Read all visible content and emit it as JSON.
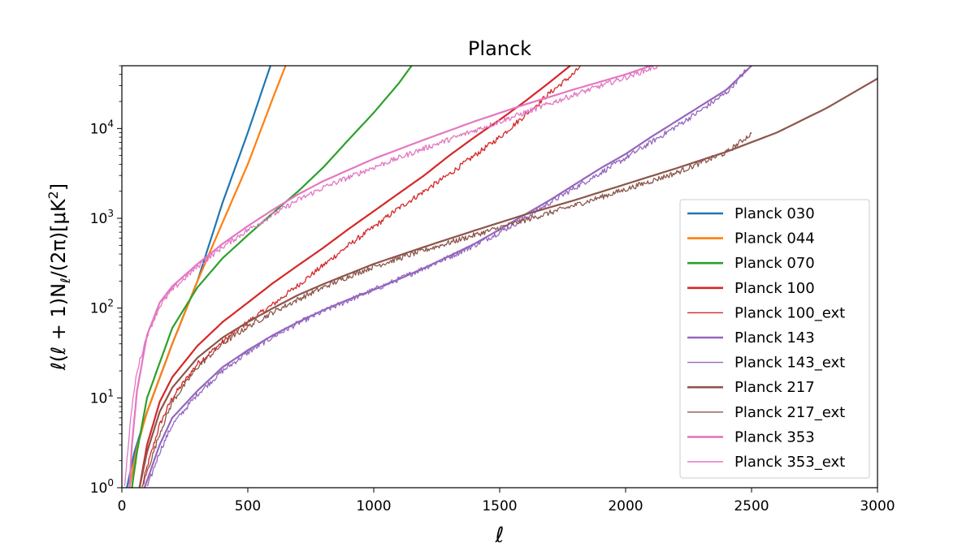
{
  "chart_data": {
    "type": "line",
    "title": "Planck",
    "xlabel": "ℓ",
    "ylabel": "ℓ(ℓ + 1)N",
    "ylabel_sub": "ℓ",
    "ylabel_tail": "/(2π)[μK",
    "ylabel_sup": "2",
    "ylabel_end": "]",
    "xlim": [
      0,
      3000
    ],
    "ylim": [
      1,
      50000
    ],
    "yscale": "log",
    "grid": false,
    "legend_position": "center-right",
    "x_ticks": [
      0,
      500,
      1000,
      1500,
      2000,
      2500,
      3000
    ],
    "x_tick_labels": [
      "0",
      "500",
      "1000",
      "1500",
      "2000",
      "2500",
      "3000"
    ],
    "y_ticks": [
      1,
      10,
      100,
      1000,
      10000
    ],
    "y_tick_base": "10",
    "y_tick_exps": [
      "0",
      "1",
      "2",
      "3",
      "4"
    ],
    "series": [
      {
        "name": "Planck 030",
        "color": "#1f77b4",
        "style": "thick",
        "noisy": false,
        "x": [
          20,
          50,
          100,
          200,
          300,
          400,
          500,
          590
        ],
        "y": [
          1,
          2.5,
          7,
          40,
          200,
          1500,
          9000,
          50000
        ]
      },
      {
        "name": "Planck 044",
        "color": "#ff7f0e",
        "style": "thick",
        "noisy": false,
        "x": [
          30,
          60,
          100,
          200,
          300,
          400,
          500,
          600,
          650
        ],
        "y": [
          1,
          2.8,
          7,
          40,
          200,
          900,
          4000,
          22000,
          50000
        ]
      },
      {
        "name": "Planck 070",
        "color": "#2ca02c",
        "style": "thick",
        "noisy": false,
        "x": [
          40,
          60,
          100,
          200,
          300,
          400,
          500,
          600,
          700,
          800,
          900,
          1000,
          1100,
          1150
        ],
        "y": [
          1,
          2.5,
          10,
          60,
          170,
          360,
          650,
          1150,
          2000,
          3700,
          7500,
          15000,
          32000,
          50000
        ]
      },
      {
        "name": "Planck 100",
        "color": "#d62728",
        "style": "thick",
        "noisy": false,
        "x": [
          70,
          100,
          150,
          200,
          300,
          400,
          500,
          600,
          700,
          800,
          900,
          1000,
          1100,
          1200,
          1300,
          1400,
          1500,
          1600,
          1700,
          1780
        ],
        "y": [
          1,
          3,
          9,
          17,
          38,
          70,
          115,
          190,
          300,
          470,
          760,
          1200,
          1900,
          3000,
          5000,
          8000,
          12500,
          20000,
          33000,
          50000
        ]
      },
      {
        "name": "Planck 100_ext",
        "color": "#d62728",
        "style": "thin",
        "noisy": true,
        "x": [
          80,
          100,
          150,
          200,
          300,
          400,
          500,
          600,
          700,
          800,
          900,
          1000,
          1100,
          1200,
          1300,
          1400,
          1500,
          1600,
          1700,
          1800,
          1820
        ],
        "y": [
          1,
          1.7,
          5,
          10,
          24,
          42,
          70,
          110,
          180,
          300,
          500,
          800,
          1300,
          2000,
          3100,
          5000,
          8000,
          14000,
          25000,
          42000,
          50000
        ]
      },
      {
        "name": "Planck 143",
        "color": "#9467bd",
        "style": "thick",
        "noisy": false,
        "x": [
          90,
          150,
          200,
          300,
          400,
          500,
          600,
          700,
          800,
          900,
          1000,
          1100,
          1200,
          1300,
          1400,
          1500,
          1600,
          1700,
          1800,
          1900,
          2000,
          2100,
          2200,
          2300,
          2400,
          2500
        ],
        "y": [
          1,
          3,
          6,
          12,
          22,
          34,
          50,
          70,
          95,
          125,
          160,
          210,
          280,
          380,
          520,
          750,
          1100,
          1600,
          2400,
          3600,
          5200,
          8000,
          12000,
          18000,
          27000,
          50000
        ]
      },
      {
        "name": "Planck 143_ext",
        "color": "#9467bd",
        "style": "thin",
        "noisy": true,
        "x": [
          100,
          150,
          200,
          300,
          400,
          500,
          600,
          700,
          800,
          900,
          1000,
          1100,
          1200,
          1300,
          1400,
          1500,
          1600,
          1700,
          1800,
          1900,
          2000,
          2100,
          2200,
          2300,
          2400,
          2480
        ],
        "y": [
          1,
          2.5,
          5,
          11,
          20,
          32,
          48,
          68,
          92,
          122,
          160,
          210,
          280,
          370,
          500,
          700,
          1000,
          1500,
          2200,
          3200,
          4700,
          7000,
          10500,
          16000,
          25000,
          45000
        ]
      },
      {
        "name": "Planck 217",
        "color": "#8c564b",
        "style": "thick",
        "noisy": false,
        "x": [
          70,
          100,
          150,
          200,
          300,
          400,
          500,
          600,
          700,
          800,
          900,
          1000,
          1200,
          1400,
          1600,
          1800,
          2000,
          2200,
          2400,
          2600,
          2800,
          3000
        ],
        "y": [
          1,
          2.5,
          7,
          13,
          28,
          47,
          70,
          100,
          140,
          185,
          240,
          310,
          480,
          730,
          1100,
          1600,
          2400,
          3600,
          5500,
          9000,
          17000,
          36000
        ]
      },
      {
        "name": "Planck 217_ext",
        "color": "#8c564b",
        "style": "thin",
        "noisy": true,
        "x": [
          80,
          100,
          150,
          200,
          300,
          400,
          500,
          600,
          700,
          800,
          900,
          1000,
          1200,
          1400,
          1600,
          1800,
          2000,
          2200,
          2400,
          2500
        ],
        "y": [
          1,
          1.5,
          4,
          9,
          22,
          40,
          62,
          90,
          125,
          170,
          225,
          290,
          440,
          650,
          950,
          1400,
          2100,
          3200,
          5400,
          8800
        ]
      },
      {
        "name": "Planck 353",
        "color": "#e377c2",
        "style": "thick",
        "noisy": false,
        "x": [
          30,
          40,
          60,
          100,
          150,
          200,
          300,
          400,
          500,
          600,
          700,
          800,
          1000,
          1200,
          1400,
          1600,
          1800,
          2000,
          2100
        ],
        "y": [
          1,
          3,
          12,
          50,
          115,
          175,
          310,
          520,
          820,
          1250,
          1850,
          2600,
          4600,
          7500,
          12000,
          18500,
          27500,
          40000,
          50000
        ]
      },
      {
        "name": "Planck 353_ext",
        "color": "#e377c2",
        "style": "thin",
        "noisy": true,
        "x": [
          10,
          20,
          40,
          60,
          100,
          150,
          200,
          300,
          400,
          500,
          600,
          700,
          800,
          1000,
          1200,
          1400,
          1600,
          1800,
          2000,
          2130
        ],
        "y": [
          1,
          2,
          8,
          20,
          50,
          105,
          160,
          290,
          480,
          740,
          1100,
          1600,
          2200,
          3700,
          6000,
          9500,
          15000,
          24000,
          37000,
          50000
        ]
      }
    ]
  }
}
